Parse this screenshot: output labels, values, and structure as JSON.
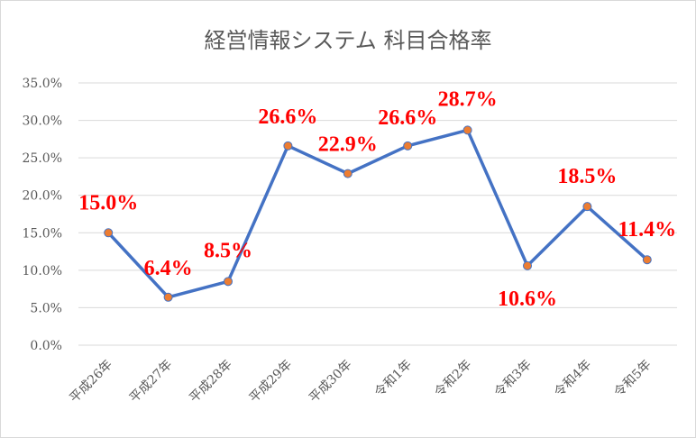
{
  "chart_data": {
    "type": "line",
    "title": "経営情報システム 科目合格率",
    "categories": [
      "平成26年",
      "平成27年",
      "平成28年",
      "平成29年",
      "平成30年",
      "令和1年",
      "令和2年",
      "令和3年",
      "令和4年",
      "令和5年"
    ],
    "series": [
      {
        "values": [
          15.0,
          6.4,
          8.5,
          26.6,
          22.9,
          26.6,
          28.7,
          10.6,
          18.5,
          11.4
        ]
      }
    ],
    "data_labels": [
      "15.0%",
      "6.4%",
      "8.5%",
      "26.6%",
      "22.9%",
      "26.6%",
      "28.7%",
      "10.6%",
      "18.5%",
      "11.4%"
    ],
    "y_ticks": [
      "0.0%",
      "5.0%",
      "10.0%",
      "15.0%",
      "20.0%",
      "25.0%",
      "30.0%",
      "35.0%"
    ],
    "ylim": [
      0,
      35
    ],
    "grid": true,
    "legend": "none",
    "colors": {
      "line": "#4472c4",
      "marker": "#ed7d31",
      "label": "#ff0000",
      "grid": "#d9d9d9",
      "text": "#595959"
    }
  }
}
